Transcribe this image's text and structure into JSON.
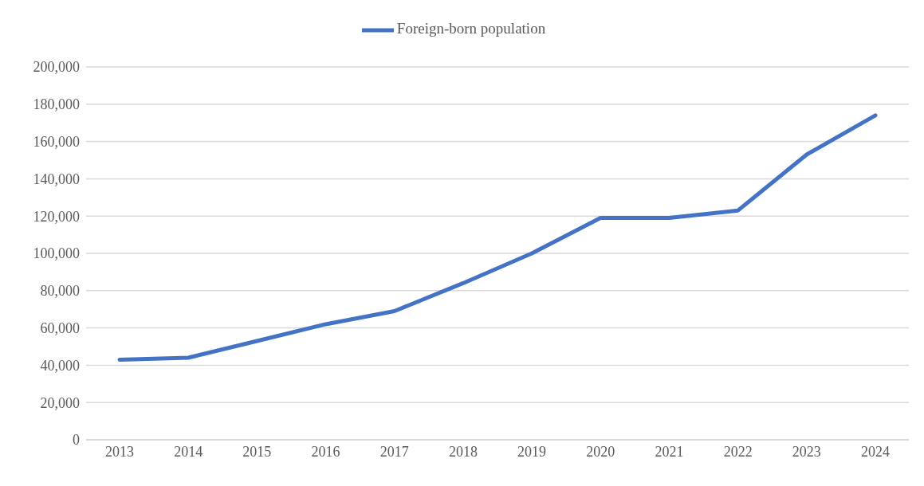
{
  "chart_data": {
    "type": "line",
    "categories": [
      "2013",
      "2014",
      "2015",
      "2016",
      "2017",
      "2018",
      "2019",
      "2020",
      "2021",
      "2022",
      "2023",
      "2024"
    ],
    "series": [
      {
        "name": "Foreign-born population",
        "color": "#4472c4",
        "values": [
          43000,
          44000,
          53000,
          62000,
          69000,
          84000,
          100000,
          119000,
          119000,
          123000,
          153000,
          174000
        ]
      }
    ],
    "ylim": [
      0,
      200000
    ],
    "yticks": [
      0,
      {
        "value": 20000,
        "label": "20,000"
      },
      {
        "value": 40000,
        "label": "40,000"
      },
      {
        "value": 60000,
        "label": "60,000"
      },
      {
        "value": 80000,
        "label": "80,000"
      },
      {
        "value": 100000,
        "label": "100,000"
      },
      {
        "value": 120000,
        "label": "120,000"
      },
      {
        "value": 140000,
        "label": "140,000"
      },
      {
        "value": 160000,
        "label": "160,000"
      },
      {
        "value": 180000,
        "label": "180,000"
      },
      {
        "value": 200000,
        "label": "200,000"
      }
    ],
    "grid": "y",
    "legend": "top",
    "marker": "none",
    "line_style": "solid"
  }
}
